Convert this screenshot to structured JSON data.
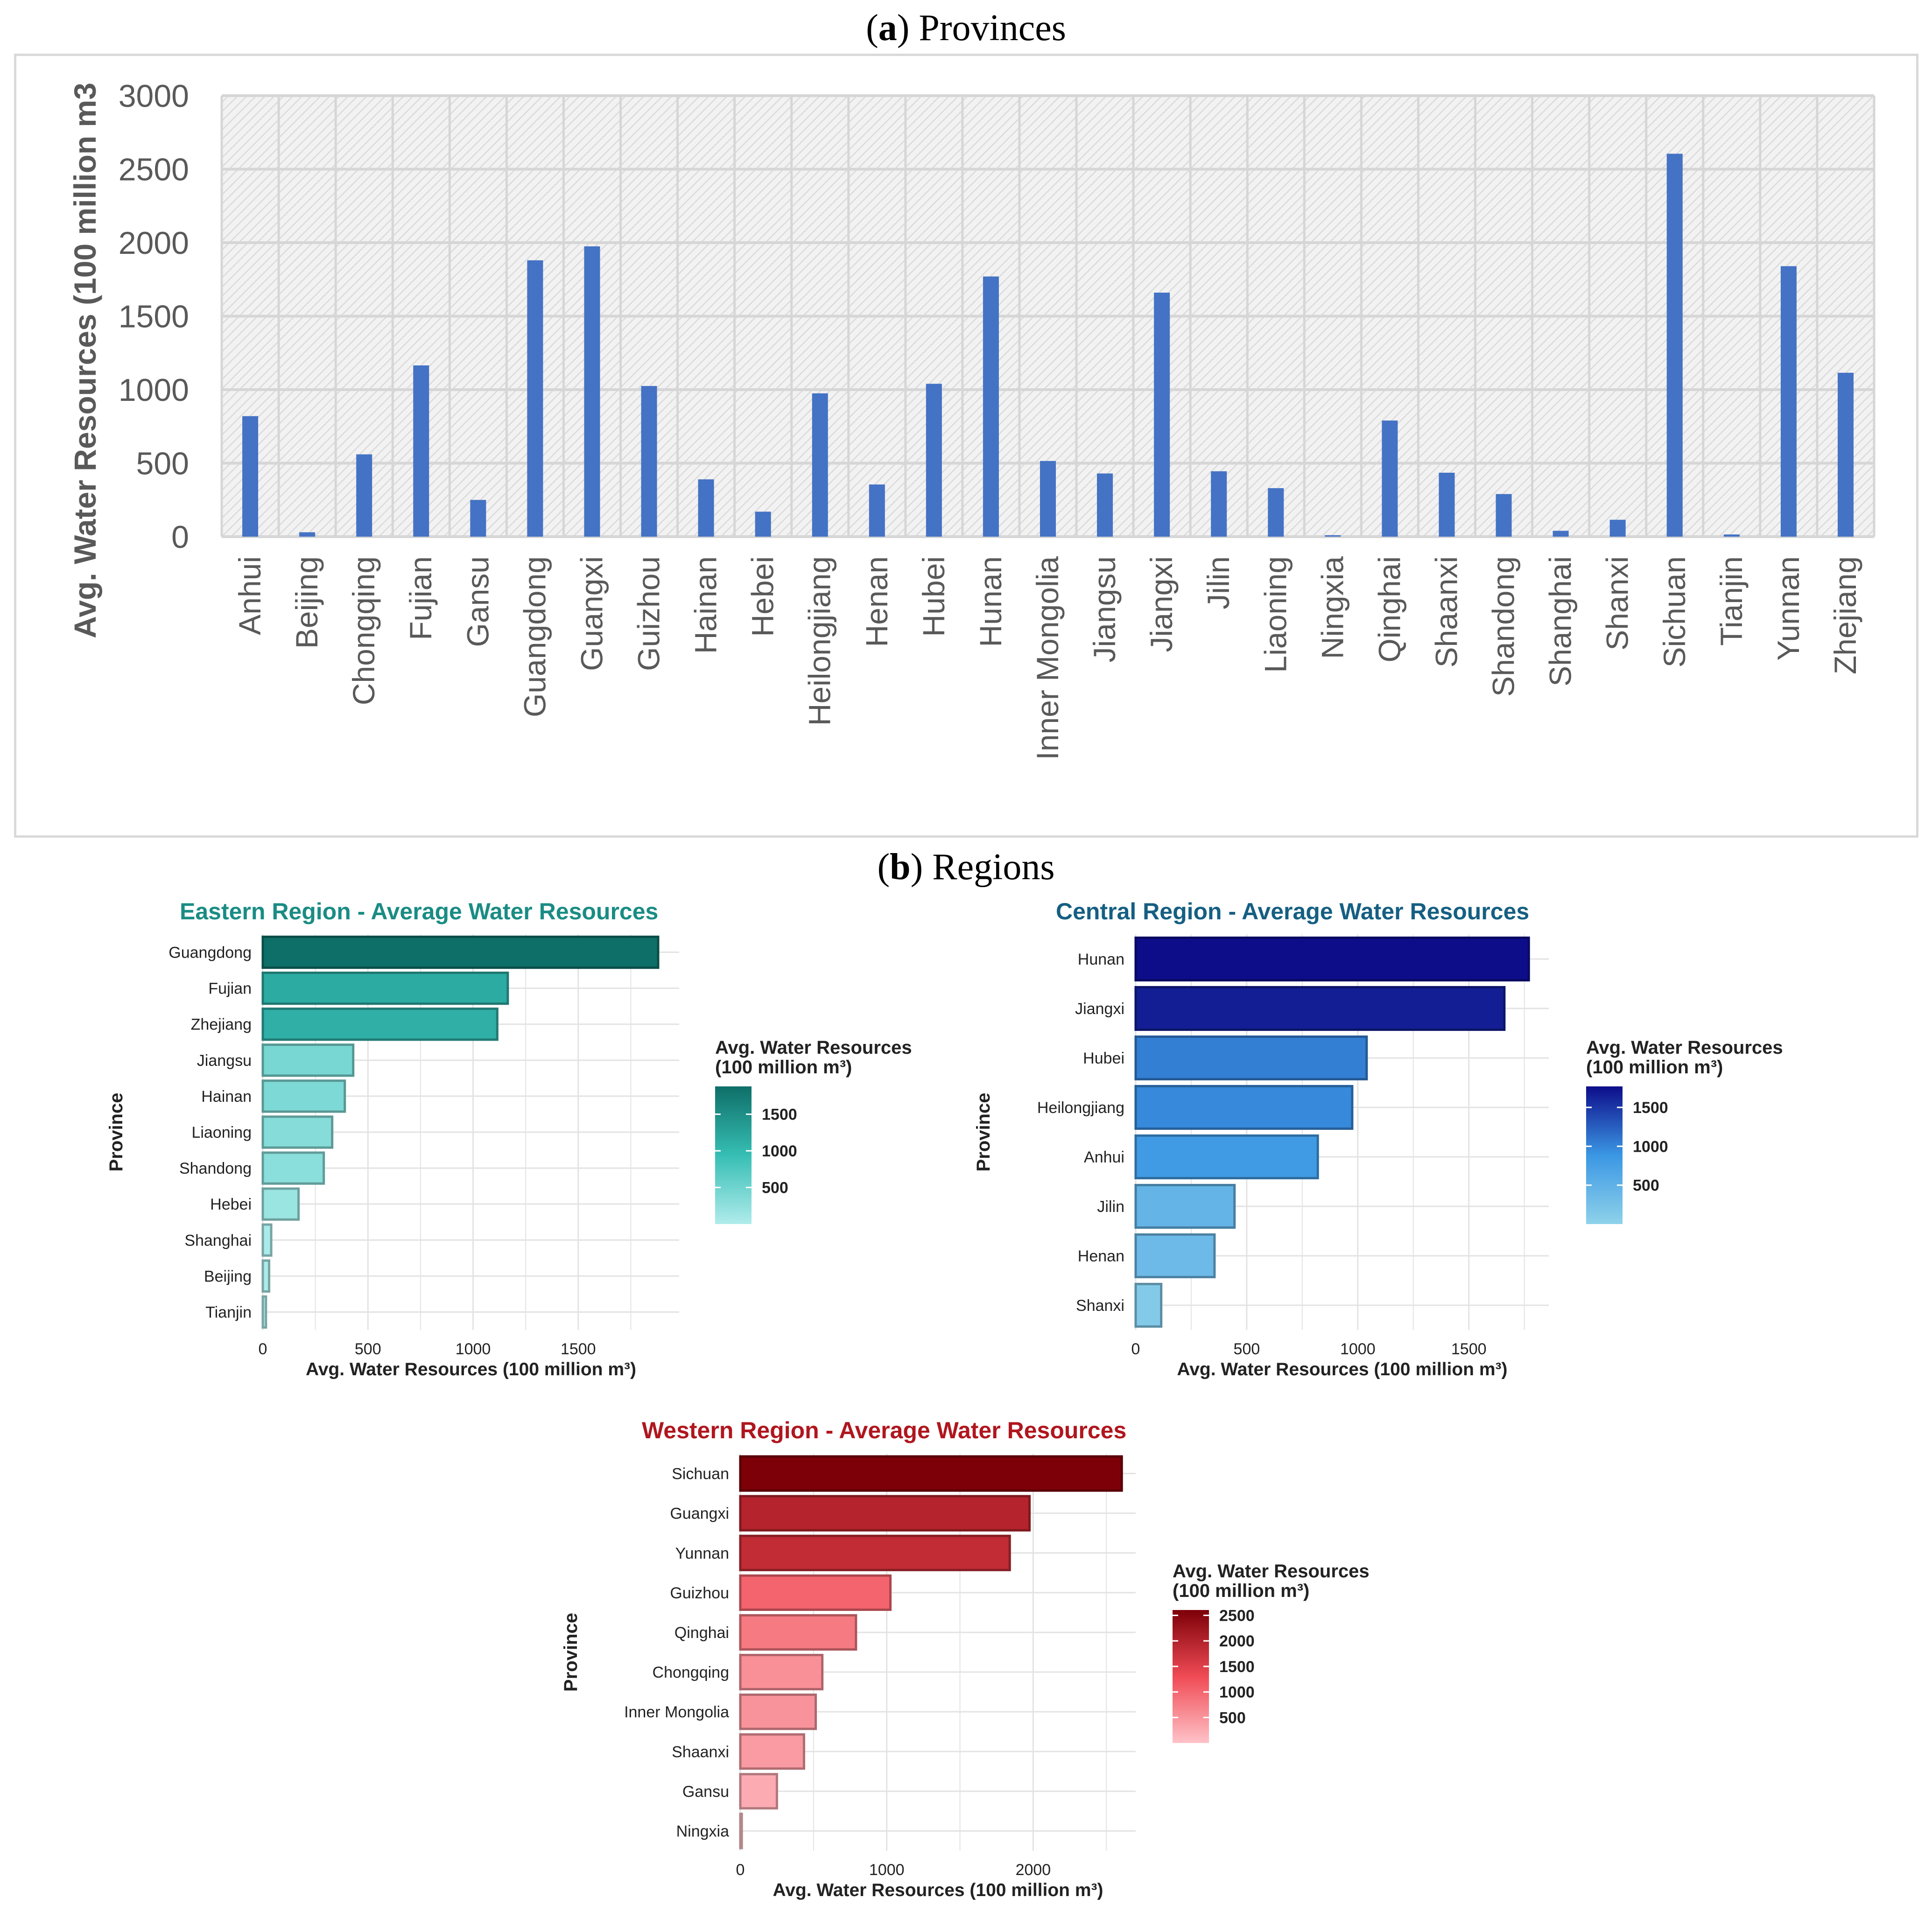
{
  "panel_a": {
    "letter": "a",
    "title": "Provinces"
  },
  "panel_b": {
    "letter": "b",
    "title": "Regions"
  },
  "chart_data": [
    {
      "type": "bar",
      "title": "(a) Provinces",
      "ylabel": "Avg. Water Resources (100 million m3",
      "xlabel": "",
      "ylim": [
        0,
        3000
      ],
      "yticks": [
        0,
        500,
        1000,
        1500,
        2000,
        2500,
        3000
      ],
      "categories": [
        "Anhui",
        "Beijing",
        "Chongqing",
        "Fujian",
        "Gansu",
        "Guangdong",
        "Guangxi",
        "Guizhou",
        "Hainan",
        "Hebei",
        "Heilongjiang",
        "Henan",
        "Hubei",
        "Hunan",
        "Inner Mongolia",
        "Jiangsu",
        "Jiangxi",
        "Jilin",
        "Liaoning",
        "Ningxia",
        "Qinghai",
        "Shaanxi",
        "Shandong",
        "Shanghai",
        "Shanxi",
        "Sichuan",
        "Tianjin",
        "Yunnan",
        "Zhejiang"
      ],
      "values": [
        820,
        30,
        560,
        1165,
        250,
        1880,
        1975,
        1025,
        390,
        170,
        975,
        355,
        1040,
        1770,
        515,
        430,
        1660,
        445,
        330,
        10,
        790,
        435,
        290,
        40,
        115,
        2605,
        15,
        1840,
        1115
      ],
      "bar_color": "#4472C4",
      "grid": true
    },
    {
      "type": "bar",
      "orientation": "horizontal",
      "title": "Eastern Region - Average Water Resources",
      "title_color": "#1a8c84",
      "xlabel": "Avg. Water Resources (100 million m³)",
      "ylabel": "Province",
      "xlim": [
        0,
        1980
      ],
      "xticks": [
        0,
        500,
        1000,
        1500
      ],
      "categories": [
        "Guangdong",
        "Fujian",
        "Zhejiang",
        "Jiangsu",
        "Hainan",
        "Liaoning",
        "Shandong",
        "Hebei",
        "Shanghai",
        "Beijing",
        "Tianjin"
      ],
      "values": [
        1880,
        1165,
        1115,
        430,
        390,
        330,
        290,
        170,
        40,
        30,
        15
      ],
      "legend": {
        "title_line1": "Avg. Water Resources",
        "title_line2": "(100 million m³)",
        "ticks": [
          500,
          1000,
          1500
        ],
        "range": [
          0,
          1880
        ],
        "colors": [
          "#b0ecec",
          "#36beb4",
          "#0e6f68"
        ]
      },
      "grid": true
    },
    {
      "type": "bar",
      "orientation": "horizontal",
      "title": "Central Region - Average Water Resources",
      "title_color": "#155f82",
      "xlabel": "Avg. Water Resources (100 million m³)",
      "ylabel": "Province",
      "xlim": [
        0,
        1860
      ],
      "xticks": [
        0,
        500,
        1000,
        1500
      ],
      "categories": [
        "Hunan",
        "Jiangxi",
        "Hubei",
        "Heilongjiang",
        "Anhui",
        "Jilin",
        "Henan",
        "Shanxi"
      ],
      "values": [
        1770,
        1660,
        1040,
        975,
        820,
        445,
        355,
        115
      ],
      "legend": {
        "title_line1": "Avg. Water Resources",
        "title_line2": "(100 million m³)",
        "ticks": [
          500,
          1000,
          1500
        ],
        "range": [
          0,
          1770
        ],
        "colors": [
          "#8ed2ea",
          "#3b97e4",
          "#0d0d8a"
        ]
      },
      "grid": true
    },
    {
      "type": "bar",
      "orientation": "horizontal",
      "title": "Western Region - Average Water Resources",
      "title_color": "#b0161e",
      "xlabel": "Avg. Water Resources (100 million m³)",
      "ylabel": "Province",
      "xlim": [
        0,
        2700
      ],
      "xticks": [
        0,
        1000,
        2000
      ],
      "categories": [
        "Sichuan",
        "Guangxi",
        "Yunnan",
        "Guizhou",
        "Qinghai",
        "Chongqing",
        "Inner Mongolia",
        "Shaanxi",
        "Gansu",
        "Ningxia"
      ],
      "values": [
        2605,
        1975,
        1840,
        1025,
        790,
        560,
        515,
        435,
        250,
        10
      ],
      "legend": {
        "title_line1": "Avg. Water Resources",
        "title_line2": "(100 million m³)",
        "ticks": [
          500,
          1000,
          1500,
          2000,
          2500
        ],
        "range": [
          0,
          2605
        ],
        "colors": [
          "#ffc2c8",
          "#f04b55",
          "#7d0008"
        ]
      },
      "grid": true
    }
  ]
}
